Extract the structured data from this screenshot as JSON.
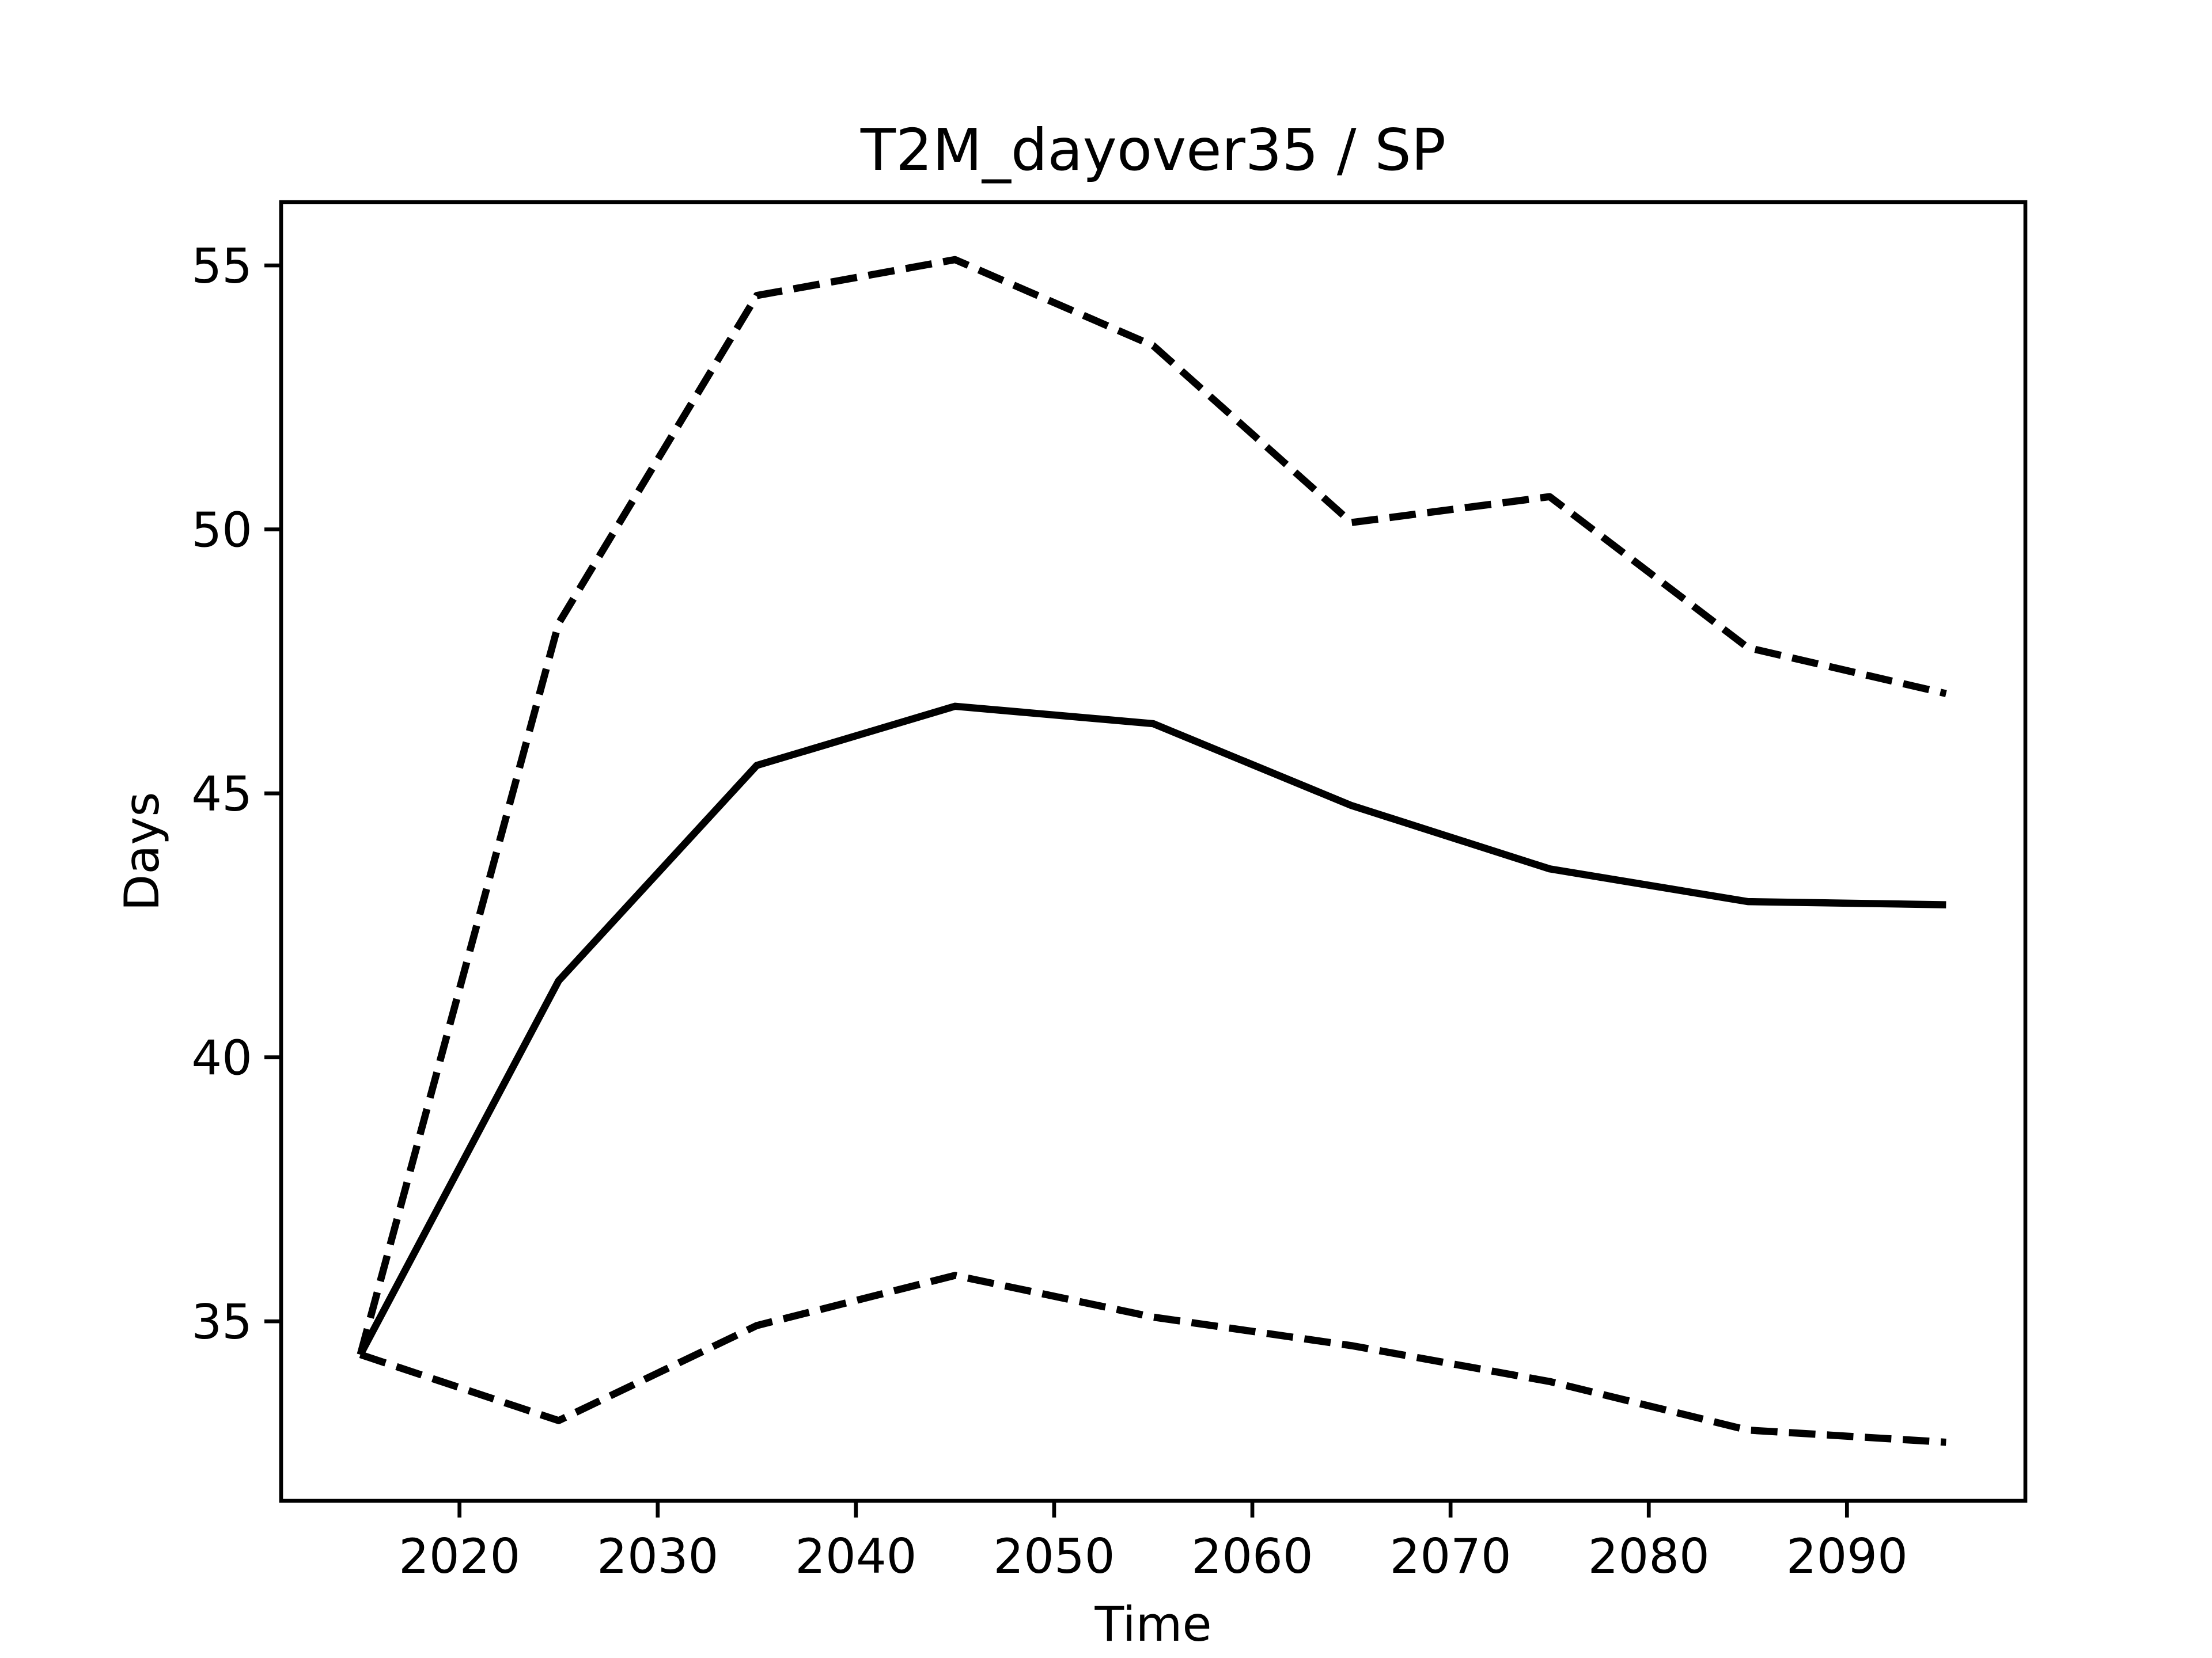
{
  "chart_data": {
    "type": "line",
    "title": "T2M_dayover35 / SP",
    "xlabel": "Time",
    "ylabel": "Days",
    "x": [
      2015,
      2025,
      2035,
      2045,
      2055,
      2065,
      2075,
      2085,
      2095
    ],
    "series": [
      {
        "color": "#000000",
        "dashed": false,
        "values": [
          34.37,
          41.45,
          45.53,
          46.65,
          46.32,
          44.77,
          43.57,
          42.95,
          42.89
        ]
      },
      {
        "color": "#000000",
        "dashed": true,
        "values": [
          34.37,
          48.22,
          54.43,
          55.11,
          53.48,
          50.13,
          50.62,
          47.76,
          46.89
        ]
      },
      {
        "color": "#000000",
        "dashed": true,
        "values": [
          34.37,
          33.12,
          34.92,
          35.87,
          35.08,
          34.54,
          33.86,
          32.94,
          32.71
        ]
      }
    ],
    "xlim": [
      2011,
      2099
    ],
    "xticks": [
      2020,
      2030,
      2040,
      2050,
      2060,
      2070,
      2080,
      2090
    ],
    "ylim": [
      31.6,
      56.2
    ],
    "yticks": [
      35,
      40,
      45,
      50,
      55
    ],
    "grid": false
  }
}
